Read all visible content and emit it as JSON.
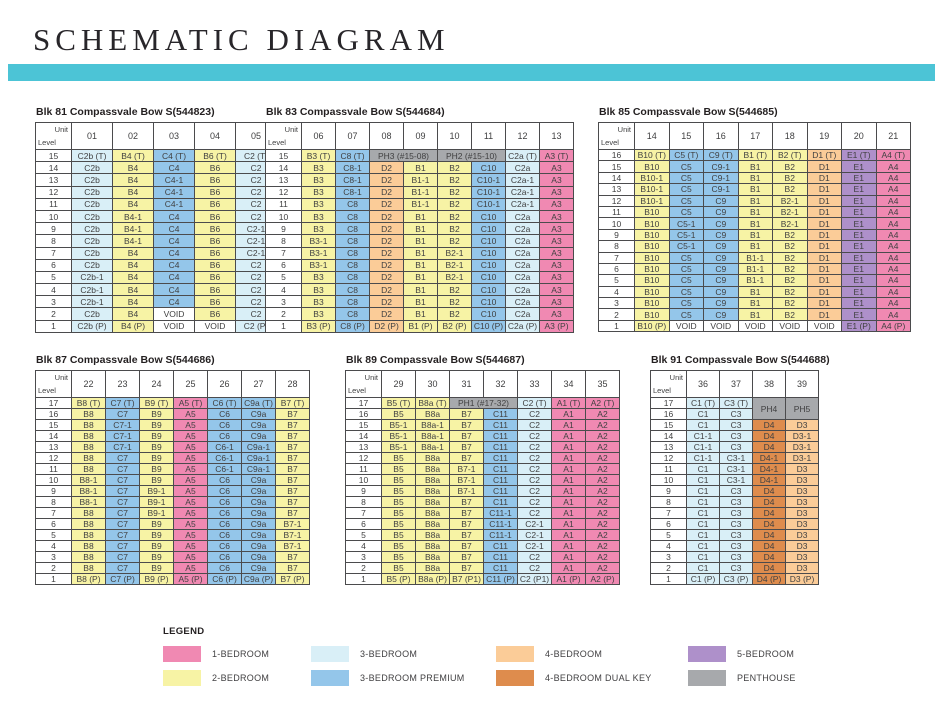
{
  "title": "SCHEMATIC DIAGRAM",
  "corner": {
    "unit": "Unit",
    "level": "Level"
  },
  "colors": {
    "accent": "#4cc4d6",
    "1br": "#f089b2",
    "2br": "#f7f3a5",
    "3br": "#d9eff7",
    "3brp": "#94c6ea",
    "4br": "#fbcc98",
    "4brdk": "#de8c4d",
    "5br": "#ae90ca",
    "ph": "#a7a9ac",
    "void": "#ffffff"
  },
  "legend": {
    "heading": "LEGEND",
    "items": [
      {
        "label": "1-BEDROOM",
        "type": "1br"
      },
      {
        "label": "2-BEDROOM",
        "type": "2br"
      },
      {
        "label": "3-BEDROOM",
        "type": "3br"
      },
      {
        "label": "3-BEDROOM PREMIUM",
        "type": "3brp"
      },
      {
        "label": "4-BEDROOM",
        "type": "4br"
      },
      {
        "label": "4-BEDROOM DUAL KEY",
        "type": "4brdk"
      },
      {
        "label": "5-BEDROOM",
        "type": "5br"
      },
      {
        "label": "PENTHOUSE",
        "type": "ph"
      }
    ]
  },
  "blocks": [
    {
      "title": "Blk 81 Compassvale Bow S(544823)",
      "stacks": [
        "01",
        "02",
        "03",
        "04",
        "05"
      ],
      "stack_types": [
        "3br",
        "2br",
        "3brp",
        "2br",
        "3br"
      ],
      "levels": [
        15,
        14,
        13,
        12,
        11,
        10,
        9,
        8,
        7,
        6,
        5,
        4,
        3,
        2,
        1
      ],
      "rows": [
        [
          "C2b (T)",
          "B4 (T)",
          "C4 (T)",
          "B6 (T)",
          "C2 (T)"
        ],
        [
          "C2b",
          "B4",
          "C4",
          "B6",
          "C2"
        ],
        [
          "C2b",
          "B4",
          "C4-1",
          "B6",
          "C2"
        ],
        [
          "C2b",
          "B4",
          "C4-1",
          "B6",
          "C2"
        ],
        [
          "C2b",
          "B4",
          "C4-1",
          "B6",
          "C2"
        ],
        [
          "C2b",
          "B4-1",
          "C4",
          "B6",
          "C2"
        ],
        [
          "C2b",
          "B4-1",
          "C4",
          "B6",
          "C2-1"
        ],
        [
          "C2b",
          "B4-1",
          "C4",
          "B6",
          "C2-1"
        ],
        [
          "C2b",
          "B4",
          "C4",
          "B6",
          "C2-1"
        ],
        [
          "C2b",
          "B4",
          "C4",
          "B6",
          "C2"
        ],
        [
          "C2b-1",
          "B4",
          "C4",
          "B6",
          "C2"
        ],
        [
          "C2b-1",
          "B4",
          "C4",
          "B6",
          "C2"
        ],
        [
          "C2b-1",
          "B4",
          "C4",
          "B6",
          "C2"
        ],
        [
          "C2b",
          "B4",
          "VOID",
          "B6",
          "C2"
        ],
        [
          "C2b (P)",
          "B4 (P)",
          "VOID",
          "VOID",
          "C2 (P)"
        ]
      ]
    },
    {
      "title": "Blk 83 Compassvale Bow S(544684)",
      "stacks": [
        "06",
        "07",
        "08",
        "09",
        "10",
        "11",
        "12",
        "13"
      ],
      "stack_types": [
        "2br",
        "3brp",
        "4br",
        "2br",
        "2br",
        "3brp",
        "3br",
        "1br"
      ],
      "levels": [
        15,
        14,
        13,
        12,
        11,
        10,
        9,
        8,
        7,
        6,
        5,
        4,
        3,
        2,
        1
      ],
      "rows": [
        [
          "B3 (T)",
          "C8 (T)",
          {
            "t": "PH3 (#15-08)",
            "cs": 2
          },
          {
            "t": "PH2 (#15-10)",
            "cs": 2
          },
          "C2a (T)",
          "A3 (T)"
        ],
        [
          "B3",
          "C8-1",
          "D2",
          "B1",
          "B2",
          "C10",
          "C2a",
          "A3"
        ],
        [
          "B3",
          "C8-1",
          "D2",
          "B1-1",
          "B2",
          "C10-1",
          "C2a-1",
          "A3"
        ],
        [
          "B3",
          "C8-1",
          "D2",
          "B1-1",
          "B2",
          "C10-1",
          "C2a-1",
          "A3"
        ],
        [
          "B3",
          "C8",
          "D2",
          "B1-1",
          "B2",
          "C10-1",
          "C2a-1",
          "A3"
        ],
        [
          "B3",
          "C8",
          "D2",
          "B1",
          "B2",
          "C10",
          "C2a",
          "A3"
        ],
        [
          "B3",
          "C8",
          "D2",
          "B1",
          "B2",
          "C10",
          "C2a",
          "A3"
        ],
        [
          "B3-1",
          "C8",
          "D2",
          "B1",
          "B2",
          "C10",
          "C2a",
          "A3"
        ],
        [
          "B3-1",
          "C8",
          "D2",
          "B1",
          "B2-1",
          "C10",
          "C2a",
          "A3"
        ],
        [
          "B3-1",
          "C8",
          "D2",
          "B1",
          "B2-1",
          "C10",
          "C2a",
          "A3"
        ],
        [
          "B3",
          "C8",
          "D2",
          "B1",
          "B2-1",
          "C10",
          "C2a",
          "A3"
        ],
        [
          "B3",
          "C8",
          "D2",
          "B1",
          "B2",
          "C10",
          "C2a",
          "A3"
        ],
        [
          "B3",
          "C8",
          "D2",
          "B1",
          "B2",
          "C10",
          "C2a",
          "A3"
        ],
        [
          "B3",
          "C8",
          "D2",
          "B1",
          "B2",
          "C10",
          "C2a",
          "A3"
        ],
        [
          "B3 (P)",
          "C8 (P)",
          "D2 (P)",
          "B1 (P)",
          "B2 (P)",
          "C10 (P)",
          "C2a (P)",
          "A3 (P)"
        ]
      ]
    },
    {
      "title": "Blk 85 Compassvale Bow S(544685)",
      "stacks": [
        "14",
        "15",
        "16",
        "17",
        "18",
        "19",
        "20",
        "21"
      ],
      "stack_types": [
        "2br",
        "3brp",
        "3brp",
        "2br",
        "2br",
        "4br",
        "5br",
        "1br"
      ],
      "levels": [
        16,
        15,
        14,
        13,
        12,
        11,
        10,
        9,
        8,
        7,
        6,
        5,
        4,
        3,
        2,
        1
      ],
      "rows": [
        [
          "B10 (T)",
          "C5 (T)",
          "C9 (T)",
          "B1 (T)",
          "B2 (T)",
          "D1 (T)",
          "E1 (T)",
          "A4 (T)"
        ],
        [
          "B10",
          "C5",
          "C9-1",
          "B1",
          "B2",
          "D1",
          "E1",
          "A4"
        ],
        [
          "B10-1",
          "C5",
          "C9-1",
          "B1",
          "B2",
          "D1",
          "E1",
          "A4"
        ],
        [
          "B10-1",
          "C5",
          "C9-1",
          "B1",
          "B2",
          "D1",
          "E1",
          "A4"
        ],
        [
          "B10-1",
          "C5",
          "C9",
          "B1",
          "B2-1",
          "D1",
          "E1",
          "A4"
        ],
        [
          "B10",
          "C5",
          "C9",
          "B1",
          "B2-1",
          "D1",
          "E1",
          "A4"
        ],
        [
          "B10",
          "C5-1",
          "C9",
          "B1",
          "B2-1",
          "D1",
          "E1",
          "A4"
        ],
        [
          "B10",
          "C5-1",
          "C9",
          "B1",
          "B2",
          "D1",
          "E1",
          "A4"
        ],
        [
          "B10",
          "C5-1",
          "C9",
          "B1",
          "B2",
          "D1",
          "E1",
          "A4"
        ],
        [
          "B10",
          "C5",
          "C9",
          "B1-1",
          "B2",
          "D1",
          "E1",
          "A4"
        ],
        [
          "B10",
          "C5",
          "C9",
          "B1-1",
          "B2",
          "D1",
          "E1",
          "A4"
        ],
        [
          "B10",
          "C5",
          "C9",
          "B1-1",
          "B2",
          "D1",
          "E1",
          "A4"
        ],
        [
          "B10",
          "C5",
          "C9",
          "B1",
          "B2",
          "D1",
          "E1",
          "A4"
        ],
        [
          "B10",
          "C5",
          "C9",
          "B1",
          "B2",
          "D1",
          "E1",
          "A4"
        ],
        [
          "B10",
          "C5",
          "C9",
          "B1",
          "B2",
          "D1",
          "E1",
          "A4"
        ],
        [
          "B10 (P)",
          "VOID",
          "VOID",
          "VOID",
          "VOID",
          "VOID",
          "E1 (P)",
          "A4 (P)"
        ]
      ]
    },
    {
      "title": "Blk 87 Compassvale Bow S(544686)",
      "stacks": [
        "22",
        "23",
        "24",
        "25",
        "26",
        "27",
        "28"
      ],
      "stack_types": [
        "2br",
        "3brp",
        "2br",
        "1br",
        "3brp",
        "3brp",
        "2br"
      ],
      "levels": [
        17,
        16,
        15,
        14,
        13,
        12,
        11,
        10,
        9,
        8,
        7,
        6,
        5,
        4,
        3,
        2,
        1
      ],
      "rows": [
        [
          "B8 (T)",
          "C7 (T)",
          "B9 (T)",
          "A5 (T)",
          "C6 (T)",
          "C9a (T)",
          "B7 (T)"
        ],
        [
          "B8",
          "C7",
          "B9",
          "A5",
          "C6",
          "C9a",
          "B7"
        ],
        [
          "B8",
          "C7-1",
          "B9",
          "A5",
          "C6",
          "C9a",
          "B7"
        ],
        [
          "B8",
          "C7-1",
          "B9",
          "A5",
          "C6",
          "C9a",
          "B7"
        ],
        [
          "B8",
          "C7-1",
          "B9",
          "A5",
          "C6-1",
          "C9a-1",
          "B7"
        ],
        [
          "B8",
          "C7",
          "B9",
          "A5",
          "C6-1",
          "C9a-1",
          "B7"
        ],
        [
          "B8",
          "C7",
          "B9",
          "A5",
          "C6-1",
          "C9a-1",
          "B7"
        ],
        [
          "B8-1",
          "C7",
          "B9",
          "A5",
          "C6",
          "C9a",
          "B7"
        ],
        [
          "B8-1",
          "C7",
          "B9-1",
          "A5",
          "C6",
          "C9a",
          "B7"
        ],
        [
          "B8-1",
          "C7",
          "B9-1",
          "A5",
          "C6",
          "C9a",
          "B7"
        ],
        [
          "B8",
          "C7",
          "B9-1",
          "A5",
          "C6",
          "C9a",
          "B7"
        ],
        [
          "B8",
          "C7",
          "B9",
          "A5",
          "C6",
          "C9a",
          "B7-1"
        ],
        [
          "B8",
          "C7",
          "B9",
          "A5",
          "C6",
          "C9a",
          "B7-1"
        ],
        [
          "B8",
          "C7",
          "B9",
          "A5",
          "C6",
          "C9a",
          "B7-1"
        ],
        [
          "B8",
          "C7",
          "B9",
          "A5",
          "C6",
          "C9a",
          "B7"
        ],
        [
          "B8",
          "C7",
          "B9",
          "A5",
          "C6",
          "C9a",
          "B7"
        ],
        [
          "B8 (P)",
          "C7 (P)",
          "B9 (P)",
          "A5 (P)",
          "C6 (P)",
          "C9a (P)",
          "B7 (P)"
        ]
      ]
    },
    {
      "title": "Blk 89 Compassvale Bow S(544687)",
      "stacks": [
        "29",
        "30",
        "31",
        "32",
        "33",
        "34",
        "35"
      ],
      "stack_types": [
        "2br",
        "2br",
        "2br",
        "3brp",
        "3br",
        "1br",
        "1br"
      ],
      "levels": [
        17,
        16,
        15,
        14,
        13,
        12,
        11,
        10,
        9,
        8,
        7,
        6,
        5,
        4,
        3,
        2,
        1
      ],
      "rows": [
        [
          "B5 (T)",
          "B8a (T)",
          {
            "t": "PH1 (#17-32)",
            "cs": 2
          },
          "C2 (T)",
          "A1 (T)",
          "A2 (T)"
        ],
        [
          "B5",
          "B8a",
          "B7",
          "C11",
          "C2",
          "A1",
          "A2"
        ],
        [
          "B5-1",
          "B8a-1",
          "B7",
          "C11",
          "C2",
          "A1",
          "A2"
        ],
        [
          "B5-1",
          "B8a-1",
          "B7",
          "C11",
          "C2",
          "A1",
          "A2"
        ],
        [
          "B5-1",
          "B8a-1",
          "B7",
          "C11",
          "C2",
          "A1",
          "A2"
        ],
        [
          "B5",
          "B8a",
          "B7",
          "C11",
          "C2",
          "A1",
          "A2"
        ],
        [
          "B5",
          "B8a",
          "B7-1",
          "C11",
          "C2",
          "A1",
          "A2"
        ],
        [
          "B5",
          "B8a",
          "B7-1",
          "C11",
          "C2",
          "A1",
          "A2"
        ],
        [
          "B5",
          "B8a",
          "B7-1",
          "C11",
          "C2",
          "A1",
          "A2"
        ],
        [
          "B5",
          "B8a",
          "B7",
          "C11",
          "C2",
          "A1",
          "A2"
        ],
        [
          "B5",
          "B8a",
          "B7",
          "C11-1",
          "C2",
          "A1",
          "A2"
        ],
        [
          "B5",
          "B8a",
          "B7",
          "C11-1",
          "C2-1",
          "A1",
          "A2"
        ],
        [
          "B5",
          "B8a",
          "B7",
          "C11-1",
          "C2-1",
          "A1",
          "A2"
        ],
        [
          "B5",
          "B8a",
          "B7",
          "C11",
          "C2-1",
          "A1",
          "A2"
        ],
        [
          "B5",
          "B8a",
          "B7",
          "C11",
          "C2",
          "A1",
          "A2"
        ],
        [
          "B5",
          "B8a",
          "B7",
          "C11",
          "C2",
          "A1",
          "A2"
        ],
        [
          "B5 (P)",
          "B8a (P)",
          "B7 (P1)",
          "C11 (P)",
          "C2 (P1)",
          "A1 (P)",
          "A2 (P)"
        ]
      ]
    },
    {
      "title": "Blk 91 Compassvale Bow S(544688)",
      "stacks": [
        "36",
        "37",
        "38",
        "39"
      ],
      "stack_types": [
        "3br",
        "3br",
        "4brdk",
        "4br"
      ],
      "levels": [
        17,
        16,
        15,
        14,
        13,
        12,
        11,
        10,
        9,
        8,
        7,
        6,
        5,
        4,
        3,
        2,
        1
      ],
      "rows": [
        [
          "C1 (T)",
          "C3 (T)",
          {
            "t": "PH4",
            "rs": 2
          },
          {
            "t": "PH5",
            "rs": 2
          }
        ],
        [
          "C1",
          "C3"
        ],
        [
          "C1",
          "C3",
          "D4",
          "D3"
        ],
        [
          "C1-1",
          "C3",
          "D4",
          "D3-1"
        ],
        [
          "C1-1",
          "C3",
          "D4",
          "D3-1"
        ],
        [
          "C1-1",
          "C3-1",
          "D4-1",
          "D3-1"
        ],
        [
          "C1",
          "C3-1",
          "D4-1",
          "D3"
        ],
        [
          "C1",
          "C3-1",
          "D4-1",
          "D3"
        ],
        [
          "C1",
          "C3",
          "D4",
          "D3"
        ],
        [
          "C1",
          "C3",
          "D4",
          "D3"
        ],
        [
          "C1",
          "C3",
          "D4",
          "D3"
        ],
        [
          "C1",
          "C3",
          "D4",
          "D3"
        ],
        [
          "C1",
          "C3",
          "D4",
          "D3"
        ],
        [
          "C1",
          "C3",
          "D4",
          "D3"
        ],
        [
          "C1",
          "C3",
          "D4",
          "D3"
        ],
        [
          "C1",
          "C3",
          "D4",
          "D3"
        ],
        [
          "C1 (P)",
          "C3 (P)",
          "D4 (P)",
          "D3 (P)"
        ]
      ]
    }
  ]
}
